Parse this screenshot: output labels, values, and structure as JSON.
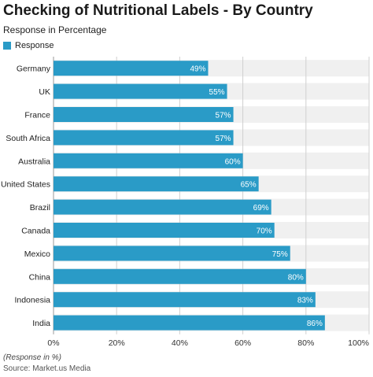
{
  "title": "Checking of Nutritional Labels - By Country",
  "subtitle": "Response in Percentage",
  "footnote": "(Response in %)",
  "source": "Source: Market.us Media",
  "colors": {
    "bar": "#2a9bc7",
    "band": "#f0f0f0",
    "grid": "#cfcfcf"
  },
  "chart_data": {
    "type": "bar",
    "orientation": "horizontal",
    "categories": [
      "Germany",
      "UK",
      "France",
      "South Africa",
      "Australia",
      "United States",
      "Brazil",
      "Canada",
      "Mexico",
      "China",
      "Indonesia",
      "India"
    ],
    "series": [
      {
        "name": "Response",
        "values": [
          49,
          55,
          57,
          57,
          60,
          65,
          69,
          70,
          75,
          80,
          83,
          86
        ],
        "data_labels": [
          "49%",
          "55%",
          "57%",
          "57%",
          "60%",
          "65%",
          "69%",
          "70%",
          "75%",
          "80%",
          "83%",
          "86%"
        ]
      }
    ],
    "xlim": [
      0,
      100
    ],
    "xticks": [
      0,
      20,
      40,
      60,
      80,
      100
    ],
    "xtick_labels": [
      "0%",
      "20%",
      "40%",
      "60%",
      "80%",
      "100%"
    ],
    "grid": true,
    "legend_position": "top-left"
  }
}
